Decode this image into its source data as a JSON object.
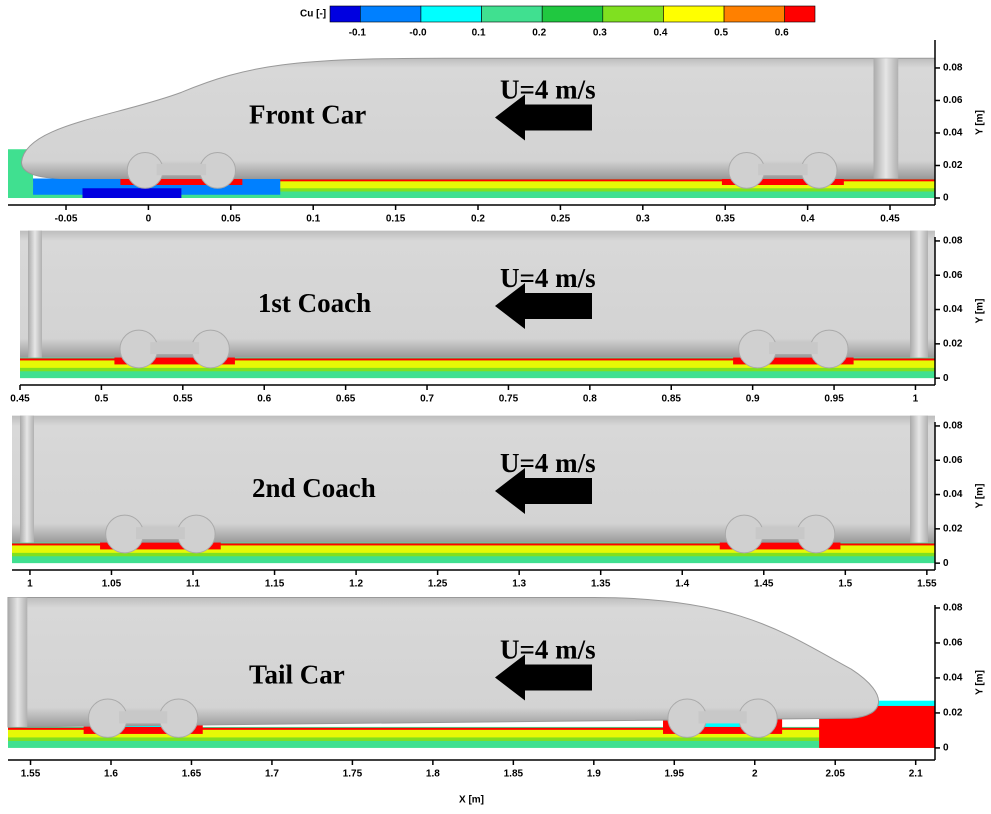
{
  "colorbar": {
    "title": "Cu [-]",
    "lim": [
      -0.15,
      0.65
    ],
    "ticks": [
      -0.1,
      {
        "value": 0,
        "label": "-0.0"
      },
      0.1,
      0.2,
      0.3,
      0.4,
      0.5,
      0.6
    ],
    "colors": [
      "#0000e0",
      "#0080ff",
      "#00ffff",
      "#40e090",
      "#20c840",
      "#80e020",
      "#ffff00",
      "#ff8000",
      "#ff0000"
    ]
  },
  "chart_data": [
    {
      "type": "contour",
      "title": "Front Car",
      "annotation": "U=4 m/s",
      "ylabel": "Y [m]",
      "xlim": [
        -0.0852,
        0.4773
      ],
      "xticks": [
        -0.05,
        0,
        0.05,
        0.1,
        0.15,
        0.2,
        0.25,
        0.3,
        0.35,
        0.4,
        0.45
      ],
      "ylim": [
        -0.0043,
        0.0972
      ],
      "yticks": [
        0,
        0.02,
        0.04,
        0.06,
        0.08
      ]
    },
    {
      "type": "contour",
      "title": "1st Coach",
      "annotation": "U=4 m/s",
      "ylabel": "Y [m]",
      "xlim": [
        0.45,
        1.012
      ],
      "xticks": [
        0.45,
        0.5,
        0.55,
        0.6,
        0.65,
        0.7,
        0.75,
        0.8,
        0.85,
        0.9,
        0.95,
        1
      ],
      "ylim": [
        -0.004,
        0.0823
      ],
      "yticks": [
        0,
        0.02,
        0.04,
        0.06,
        0.08
      ]
    },
    {
      "type": "contour",
      "title": "2nd Coach",
      "annotation": "U=4 m/s",
      "ylabel": "Y [m]",
      "xlim": [
        0.989,
        1.555
      ],
      "xticks": [
        1,
        1.05,
        1.1,
        1.15,
        1.2,
        1.25,
        1.3,
        1.35,
        1.4,
        1.45,
        1.5,
        1.55
      ],
      "ylim": [
        -0.004,
        0.0823
      ],
      "yticks": [
        0,
        0.02,
        0.04,
        0.06,
        0.08
      ]
    },
    {
      "type": "contour",
      "title": "Tail Car",
      "annotation": "U=4 m/s",
      "ylabel": "Y [m]",
      "xlabel": "X [m]",
      "xlim": [
        1.536,
        2.112
      ],
      "xticks": [
        1.55,
        1.6,
        1.65,
        1.7,
        1.75,
        1.8,
        1.85,
        1.9,
        1.95,
        2,
        2.05,
        2.1
      ],
      "ylim": [
        -0.0069,
        0.0817
      ],
      "yticks": [
        0,
        0.02,
        0.04,
        0.06,
        0.08
      ]
    }
  ]
}
